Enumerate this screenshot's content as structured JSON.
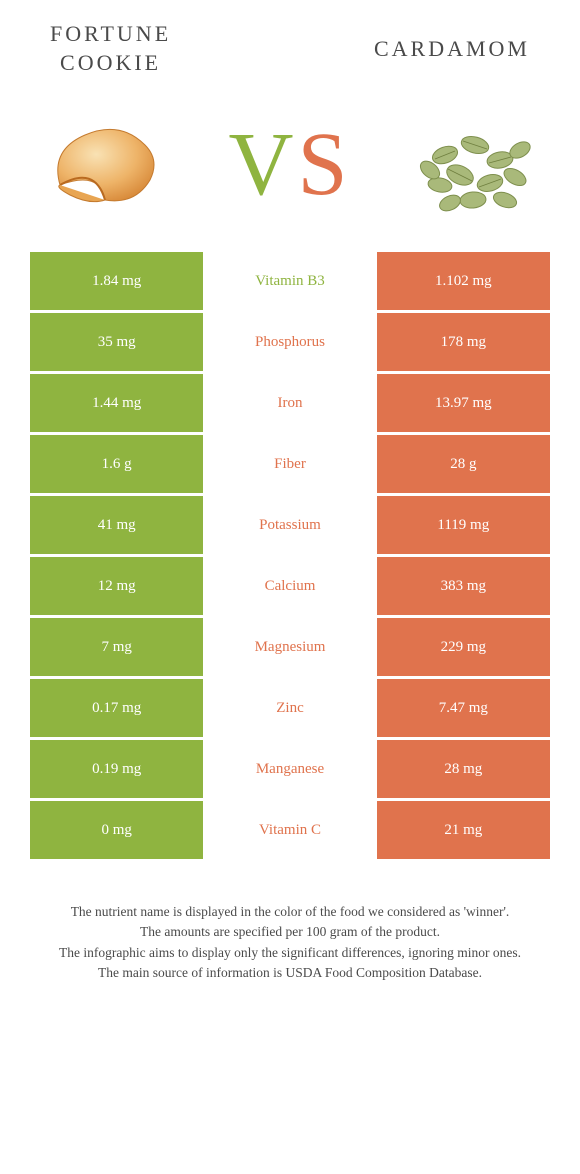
{
  "header": {
    "left_line1": "FORTUNE",
    "left_line2": "COOKIE",
    "right": "CARDAMOM"
  },
  "vs": {
    "v": "V",
    "s": "S"
  },
  "colors": {
    "green": "#8fb440",
    "orange": "#e0734d"
  },
  "rows": [
    {
      "left": "1.84 mg",
      "label": "Vitamin B3",
      "winner": "green",
      "right": "1.102 mg"
    },
    {
      "left": "35 mg",
      "label": "Phosphorus",
      "winner": "orange",
      "right": "178 mg"
    },
    {
      "left": "1.44 mg",
      "label": "Iron",
      "winner": "orange",
      "right": "13.97 mg"
    },
    {
      "left": "1.6 g",
      "label": "Fiber",
      "winner": "orange",
      "right": "28 g"
    },
    {
      "left": "41 mg",
      "label": "Potassium",
      "winner": "orange",
      "right": "1119 mg"
    },
    {
      "left": "12 mg",
      "label": "Calcium",
      "winner": "orange",
      "right": "383 mg"
    },
    {
      "left": "7 mg",
      "label": "Magnesium",
      "winner": "orange",
      "right": "229 mg"
    },
    {
      "left": "0.17 mg",
      "label": "Zinc",
      "winner": "orange",
      "right": "7.47 mg"
    },
    {
      "left": "0.19 mg",
      "label": "Manganese",
      "winner": "orange",
      "right": "28 mg"
    },
    {
      "left": "0 mg",
      "label": "Vitamin C",
      "winner": "orange",
      "right": "21 mg"
    }
  ],
  "footer": {
    "l1": "The nutrient name is displayed in the color of the food we considered as 'winner'.",
    "l2": "The amounts are specified per 100 gram of the product.",
    "l3": "The infographic aims to display only the significant differences, ignoring minor ones.",
    "l4": "The main source of information is USDA Food Composition Database."
  }
}
